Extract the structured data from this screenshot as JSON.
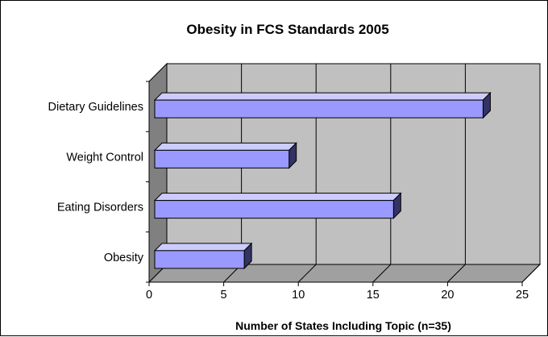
{
  "chart_data": {
    "type": "bar",
    "orientation": "horizontal",
    "style": "3d",
    "title": "Obesity in FCS Standards 2005",
    "xlabel": "Number of States Including Topic (n=35)",
    "ylabel": "",
    "categories": [
      "Dietary Guidelines",
      "Weight Control",
      "Eating Disorders",
      "Obesity"
    ],
    "values": [
      22,
      9,
      16,
      6
    ],
    "xlim": [
      0,
      25
    ],
    "x_ticks": [
      "0",
      "5",
      "10",
      "15",
      "20",
      "25"
    ],
    "grid": true,
    "legend": "none",
    "colors": {
      "bar_face": "#9999FF",
      "bar_top": "#CCCCFF",
      "bar_side": "#333366",
      "wall": "#C0C0C0",
      "side_wall": "#808080",
      "floor": "#A0A0A0"
    }
  }
}
